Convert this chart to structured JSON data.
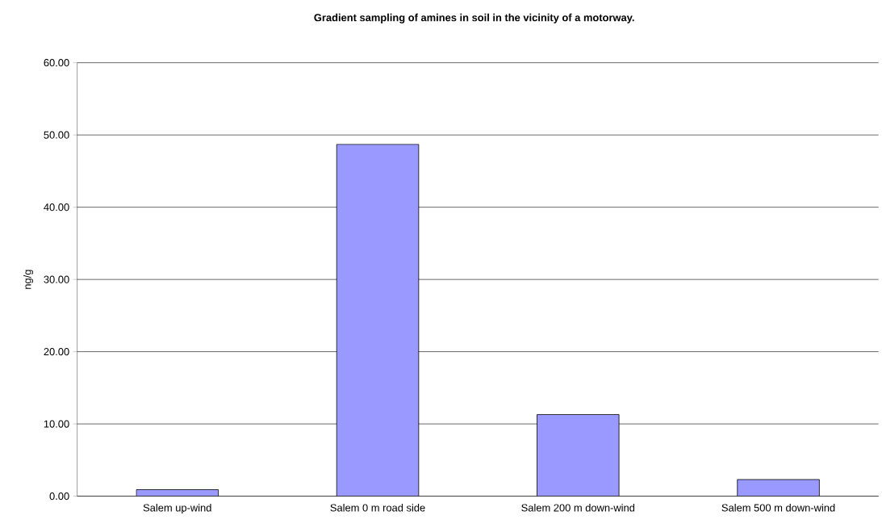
{
  "chart_data": {
    "type": "bar",
    "title": "Gradient sampling of amines in soil in the vicinity of a motorway.",
    "ylabel": "ng/g",
    "categories": [
      "Salem up-wind",
      "Salem 0 m road side",
      "Salem 200 m down-wind",
      "Salem 500 m down-wind"
    ],
    "values": [
      0.9,
      48.7,
      11.3,
      2.3
    ],
    "color": "#9999ff",
    "ylim": [
      0,
      60
    ],
    "yticks": [
      {
        "value": 0,
        "label": "0.00"
      },
      {
        "value": 10,
        "label": "10.00"
      },
      {
        "value": 20,
        "label": "20.00"
      },
      {
        "value": 30,
        "label": "30.00"
      },
      {
        "value": 40,
        "label": "40.00"
      },
      {
        "value": 50,
        "label": "50.00"
      },
      {
        "value": 60,
        "label": "60.00"
      }
    ],
    "grid": "y"
  }
}
